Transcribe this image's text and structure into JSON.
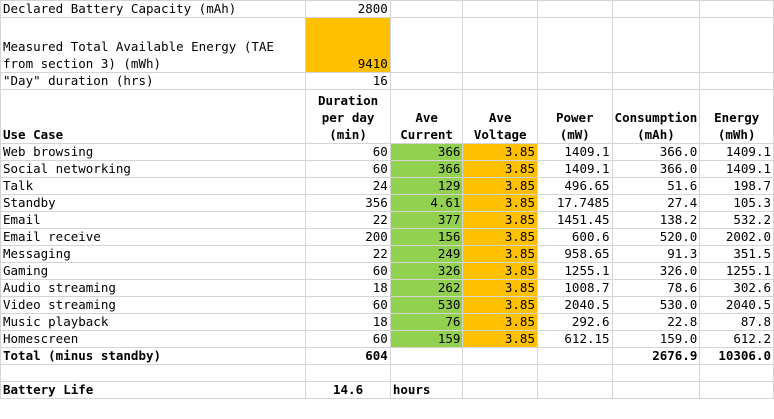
{
  "header_rows": {
    "declared_capacity": {
      "label": "Declared Battery Capacity (mAh)",
      "value": "2800"
    },
    "tae": {
      "label": "Measured Total Available Energy (TAE from section 3) (mWh)",
      "value": "9410"
    },
    "day_duration": {
      "label": "\"Day\" duration (hrs)",
      "value": "16"
    }
  },
  "columns": {
    "use_case": "Use Case",
    "duration": "Duration per day (min)",
    "current": "Ave Current",
    "voltage": "Ave Voltage",
    "power": "Power (mW)",
    "consumption": "Consumption (mAh)",
    "energy": "Energy (mWh)"
  },
  "rows": [
    {
      "use_case": "Web browsing",
      "duration": "60",
      "current": "366",
      "voltage": "3.85",
      "power": "1409.1",
      "consumption": "366.0",
      "energy": "1409.1"
    },
    {
      "use_case": "Social networking",
      "duration": "60",
      "current": "366",
      "voltage": "3.85",
      "power": "1409.1",
      "consumption": "366.0",
      "energy": "1409.1"
    },
    {
      "use_case": "Talk",
      "duration": "24",
      "current": "129",
      "voltage": "3.85",
      "power": "496.65",
      "consumption": "51.6",
      "energy": "198.7"
    },
    {
      "use_case": "Standby",
      "duration": "356",
      "current": "4.61",
      "voltage": "3.85",
      "power": "17.7485",
      "consumption": "27.4",
      "energy": "105.3"
    },
    {
      "use_case": "Email",
      "duration": "22",
      "current": "377",
      "voltage": "3.85",
      "power": "1451.45",
      "consumption": "138.2",
      "energy": "532.2"
    },
    {
      "use_case": "Email receive",
      "duration": "200",
      "current": "156",
      "voltage": "3.85",
      "power": "600.6",
      "consumption": "520.0",
      "energy": "2002.0"
    },
    {
      "use_case": "Messaging",
      "duration": "22",
      "current": "249",
      "voltage": "3.85",
      "power": "958.65",
      "consumption": "91.3",
      "energy": "351.5"
    },
    {
      "use_case": "Gaming",
      "duration": "60",
      "current": "326",
      "voltage": "3.85",
      "power": "1255.1",
      "consumption": "326.0",
      "energy": "1255.1"
    },
    {
      "use_case": "Audio streaming",
      "duration": "18",
      "current": "262",
      "voltage": "3.85",
      "power": "1008.7",
      "consumption": "78.6",
      "energy": "302.6"
    },
    {
      "use_case": "Video streaming",
      "duration": "60",
      "current": "530",
      "voltage": "3.85",
      "power": "2040.5",
      "consumption": "530.0",
      "energy": "2040.5"
    },
    {
      "use_case": "Music playback",
      "duration": "18",
      "current": "76",
      "voltage": "3.85",
      "power": "292.6",
      "consumption": "22.8",
      "energy": "87.8"
    },
    {
      "use_case": "Homescreen",
      "duration": "60",
      "current": "159",
      "voltage": "3.85",
      "power": "612.15",
      "consumption": "159.0",
      "energy": "612.2"
    }
  ],
  "total": {
    "label": "Total (minus standby)",
    "duration": "604",
    "consumption": "2676.9",
    "energy": "10306.0"
  },
  "battery_life": {
    "label": "Battery Life",
    "value": "14.6",
    "unit": "hours"
  },
  "colors": {
    "current_fill": "#92d050",
    "voltage_fill": "#ffc000",
    "tae_fill": "#ffc000",
    "gridline": "#d4d4d4"
  }
}
